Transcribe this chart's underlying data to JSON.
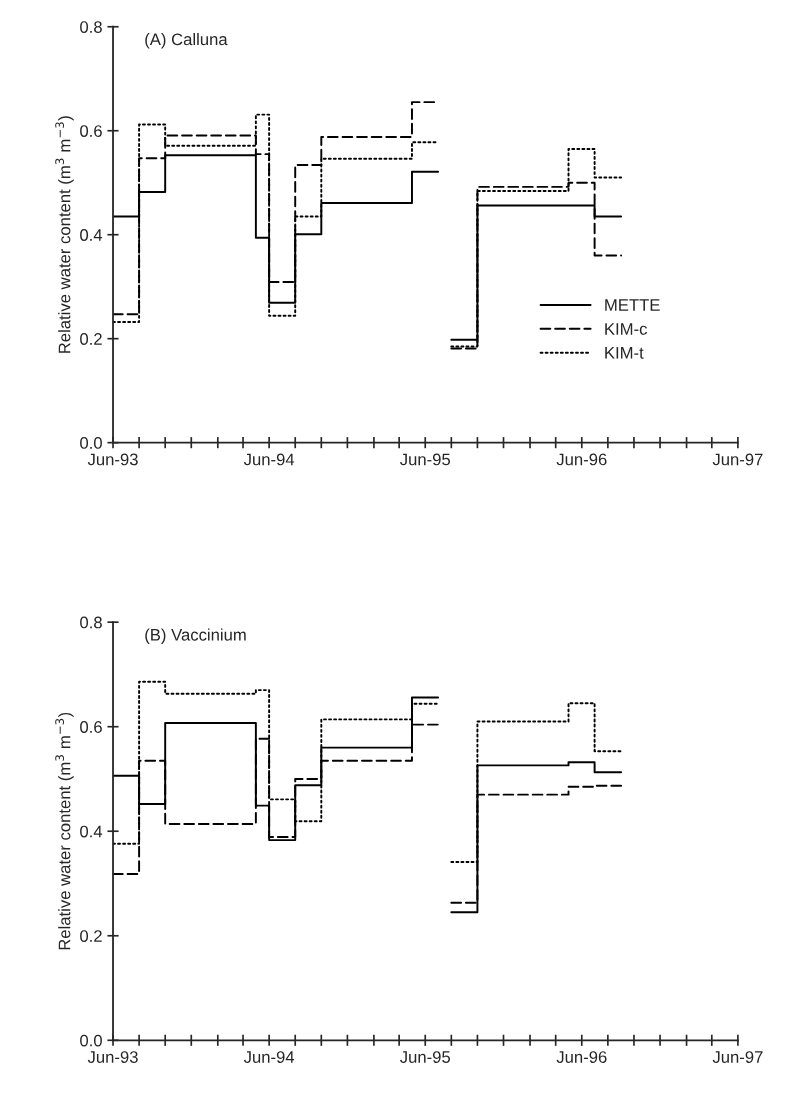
{
  "chart_data": [
    {
      "type": "step",
      "title": "(A) Calluna",
      "ylabel": "Relative water content (m$^{3}$ m$^{−3}$)",
      "x": [
        "1993-06",
        "1993-08",
        "1993-10",
        "1994-05",
        "1994-06",
        "1994-08",
        "1994-10",
        "1995-05",
        "1995-07",
        "1995-08",
        "1995-10",
        "1996-05",
        "1996-07",
        "1996-09"
      ],
      "series": [
        {
          "name": "METTE",
          "color": "#000000",
          "line_style": "solid",
          "values": [
            0.435,
            0.482,
            0.553,
            0.394,
            0.269,
            0.401,
            0.461,
            0.521,
            null,
            0.198,
            0.456,
            0.456,
            0.435,
            0.435
          ]
        },
        {
          "name": "KIM-c",
          "color": "#000000",
          "line_style": "dashed",
          "values": [
            0.247,
            0.547,
            0.591,
            0.555,
            0.309,
            0.534,
            0.588,
            0.655,
            null,
            0.181,
            0.492,
            0.5,
            0.36,
            0.36
          ]
        },
        {
          "name": "KIM-t",
          "color": "#000000",
          "line_style": "dotted",
          "values": [
            0.232,
            0.612,
            0.571,
            0.631,
            0.244,
            0.435,
            0.546,
            0.578,
            null,
            0.185,
            0.484,
            0.565,
            0.51,
            0.51
          ]
        }
      ],
      "xlim": [
        "1993-06",
        "1997-06"
      ],
      "xticks": [
        {
          "value": "1993-06",
          "label": "Jun-93"
        },
        {
          "value": "1993-08",
          "label": null
        },
        {
          "value": "1993-10",
          "label": null
        },
        {
          "value": "1993-12",
          "label": null
        },
        {
          "value": "1994-02",
          "label": null
        },
        {
          "value": "1994-04",
          "label": null
        },
        {
          "value": "1994-06",
          "label": "Jun-94"
        },
        {
          "value": "1994-08",
          "label": null
        },
        {
          "value": "1994-10",
          "label": null
        },
        {
          "value": "1994-12",
          "label": null
        },
        {
          "value": "1995-02",
          "label": null
        },
        {
          "value": "1995-04",
          "label": null
        },
        {
          "value": "1995-06",
          "label": "Jun-95"
        },
        {
          "value": "1995-08",
          "label": null
        },
        {
          "value": "1995-10",
          "label": null
        },
        {
          "value": "1995-12",
          "label": null
        },
        {
          "value": "1996-02",
          "label": null
        },
        {
          "value": "1996-04",
          "label": null
        },
        {
          "value": "1996-06",
          "label": "Jun-96"
        },
        {
          "value": "1996-08",
          "label": null
        },
        {
          "value": "1996-10",
          "label": null
        },
        {
          "value": "1996-12",
          "label": null
        },
        {
          "value": "1997-02",
          "label": null
        },
        {
          "value": "1997-04",
          "label": null
        },
        {
          "value": "1997-06",
          "label": "Jun-97"
        }
      ],
      "ylim": [
        0,
        0.8
      ],
      "yticks": [
        {
          "value": 0,
          "label": "0.0"
        },
        {
          "value": 0.2,
          "label": "0.2"
        },
        {
          "value": 0.4,
          "label": "0.4"
        },
        {
          "value": 0.6,
          "label": "0.6"
        },
        {
          "value": 0.8,
          "label": "0.8"
        }
      ],
      "legend": "right",
      "grid": false
    },
    {
      "type": "step",
      "title": "(B) Vaccinium",
      "ylabel": "Relative water content (m$^{3}$ m$^{−3}$)",
      "x": [
        "1993-06",
        "1993-08",
        "1993-10",
        "1994-05",
        "1994-06",
        "1994-08",
        "1994-10",
        "1995-05",
        "1995-07",
        "1995-08",
        "1995-10",
        "1996-05",
        "1996-07",
        "1996-09"
      ],
      "series": [
        {
          "color": "#000000",
          "line_style": "solid",
          "values": [
            0.506,
            0.452,
            0.607,
            0.449,
            0.383,
            0.488,
            0.56,
            0.656,
            null,
            0.245,
            0.526,
            0.532,
            0.513,
            0.513
          ]
        },
        {
          "color": "#000000",
          "line_style": "dashed",
          "values": [
            0.318,
            0.535,
            0.414,
            0.577,
            0.389,
            0.5,
            0.535,
            0.604,
            null,
            0.263,
            0.47,
            0.485,
            0.487,
            0.487
          ]
        },
        {
          "color": "#000000",
          "line_style": "dotted",
          "values": [
            0.376,
            0.686,
            0.663,
            0.67,
            0.461,
            0.419,
            0.614,
            0.644,
            null,
            0.341,
            0.61,
            0.645,
            0.553,
            0.553
          ]
        }
      ],
      "xlim": [
        "1993-06",
        "1997-06"
      ],
      "xticks": [
        {
          "value": "1993-06",
          "label": "Jun-93"
        },
        {
          "value": "1993-08",
          "label": null
        },
        {
          "value": "1993-10",
          "label": null
        },
        {
          "value": "1993-12",
          "label": null
        },
        {
          "value": "1994-02",
          "label": null
        },
        {
          "value": "1994-04",
          "label": null
        },
        {
          "value": "1994-06",
          "label": "Jun-94"
        },
        {
          "value": "1994-08",
          "label": null
        },
        {
          "value": "1994-10",
          "label": null
        },
        {
          "value": "1994-12",
          "label": null
        },
        {
          "value": "1995-02",
          "label": null
        },
        {
          "value": "1995-04",
          "label": null
        },
        {
          "value": "1995-06",
          "label": "Jun-95"
        },
        {
          "value": "1995-08",
          "label": null
        },
        {
          "value": "1995-10",
          "label": null
        },
        {
          "value": "1995-12",
          "label": null
        },
        {
          "value": "1996-02",
          "label": null
        },
        {
          "value": "1996-04",
          "label": null
        },
        {
          "value": "1996-06",
          "label": "Jun-96"
        },
        {
          "value": "1996-08",
          "label": null
        },
        {
          "value": "1996-10",
          "label": null
        },
        {
          "value": "1996-12",
          "label": null
        },
        {
          "value": "1997-02",
          "label": null
        },
        {
          "value": "1997-04",
          "label": null
        },
        {
          "value": "1997-06",
          "label": "Jun-97"
        }
      ],
      "ylim": [
        0,
        0.8
      ],
      "yticks": [
        {
          "value": 0,
          "label": "0.0"
        },
        {
          "value": 0.2,
          "label": "0.2"
        },
        {
          "value": 0.4,
          "label": "0.4"
        },
        {
          "value": 0.6,
          "label": "0.6"
        },
        {
          "value": 0.8,
          "label": "0.8"
        }
      ],
      "grid": false
    }
  ]
}
